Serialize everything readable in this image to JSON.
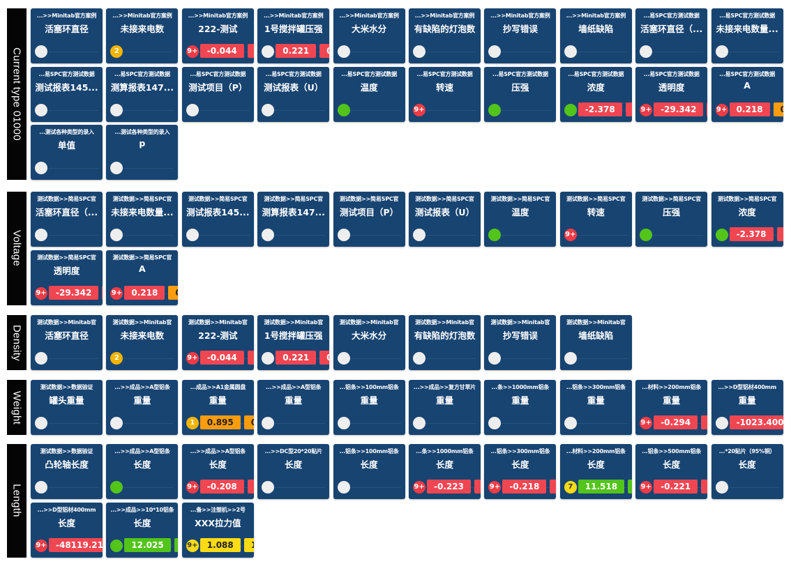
{
  "groups": [
    {
      "label": "Current type 01000",
      "cards": [
        {
          "path": "...>>Minitab官方案例",
          "title": "活塞环直径",
          "indicator": "light",
          "badge": "",
          "values": []
        },
        {
          "path": "...>>Minitab官方案例",
          "title": "未接来电数",
          "indicator": "yellow",
          "badge": "2",
          "values": []
        },
        {
          "path": "...>>Minitab官方案例",
          "title": "222-测试",
          "indicator": "red",
          "badge": "9+",
          "values": [
            {
              "text": "-0.044",
              "color": "red"
            },
            {
              "text": "-0.",
              "color": "red"
            }
          ]
        },
        {
          "path": "...>>Minitab官方案例",
          "title": "1号搅拌罐压强",
          "indicator": "light",
          "badge": "",
          "values": [
            {
              "text": "0.221",
              "color": "red"
            },
            {
              "text": "0",
              "color": "red"
            }
          ]
        },
        {
          "path": "...>>Minitab官方案例",
          "title": "大米水分",
          "indicator": "light",
          "badge": "",
          "values": []
        },
        {
          "path": "...>>Minitab官方案例",
          "title": "有缺陷的灯泡数",
          "indicator": "light",
          "badge": "",
          "values": []
        },
        {
          "path": "...>>Minitab官方案例",
          "title": "抄写错误",
          "indicator": "light",
          "badge": "",
          "values": []
        },
        {
          "path": "...>>Minitab官方案例",
          "title": "墙纸缺陷",
          "indicator": "light",
          "badge": "",
          "values": []
        },
        {
          "path": "...易SPC官方测试数据",
          "title": "活塞环直径（...",
          "indicator": "light",
          "badge": "",
          "values": []
        },
        {
          "path": "...易SPC官方测试数据",
          "title": "未接来电数量...",
          "indicator": "light",
          "badge": "",
          "values": []
        },
        {
          "path": "...易SPC官方测试数据",
          "title": "测试报表145...",
          "indicator": "light",
          "badge": "",
          "values": []
        },
        {
          "path": "...易SPC官方测试数据",
          "title": "测算报表147...",
          "indicator": "light",
          "badge": "",
          "values": []
        },
        {
          "path": "...易SPC官方测试数据",
          "title": "测试项目（P）",
          "indicator": "light",
          "badge": "",
          "values": []
        },
        {
          "path": "...易SPC官方测试数据",
          "title": "测试报表（U）",
          "indicator": "light",
          "badge": "",
          "values": []
        },
        {
          "path": "...易SPC官方测试数据",
          "title": "温度",
          "indicator": "green",
          "badge": "",
          "values": []
        },
        {
          "path": "...易SPC官方测试数据",
          "title": "转速",
          "indicator": "red",
          "badge": "9+",
          "values": []
        },
        {
          "path": "...易SPC官方测试数据",
          "title": "压强",
          "indicator": "green",
          "badge": "",
          "values": []
        },
        {
          "path": "...易SPC官方测试数据",
          "title": "浓度",
          "indicator": "green",
          "badge": "",
          "values": [
            {
              "text": "-2.378",
              "color": "red"
            },
            {
              "text": "-2",
              "color": "red"
            }
          ]
        },
        {
          "path": "...易SPC官方测试数据",
          "title": "透明度",
          "indicator": "red",
          "badge": "9+",
          "values": [
            {
              "text": "-29.342",
              "color": "red"
            },
            {
              "text": "-",
              "color": "red"
            }
          ]
        },
        {
          "path": "...易SPC官方测试数据",
          "title": "A",
          "indicator": "red",
          "badge": "9+",
          "values": [
            {
              "text": "0.218",
              "color": "red"
            },
            {
              "text": "0",
              "color": "orange"
            }
          ]
        },
        {
          "path": "...测试各种类型的录入",
          "title": "单值",
          "indicator": "light",
          "badge": "",
          "values": []
        },
        {
          "path": "...测试各种类型的录入",
          "title": "p",
          "indicator": "light",
          "badge": "",
          "values": []
        }
      ]
    },
    {
      "label": "Voltage",
      "cards": [
        {
          "path": "测试数据>>简易SPC官",
          "title": "活塞环直径（...",
          "indicator": "light",
          "badge": "",
          "values": []
        },
        {
          "path": "测试数据>>简易SPC官",
          "title": "未接来电数量...",
          "indicator": "light",
          "badge": "",
          "values": []
        },
        {
          "path": "测试数据>>简易SPC官",
          "title": "测试报表145...",
          "indicator": "light",
          "badge": "",
          "values": []
        },
        {
          "path": "测试数据>>简易SPC官",
          "title": "测算报表147...",
          "indicator": "light",
          "badge": "",
          "values": []
        },
        {
          "path": "测试数据>>简易SPC官",
          "title": "测试项目（P）",
          "indicator": "light",
          "badge": "",
          "values": []
        },
        {
          "path": "测试数据>>简易SPC官",
          "title": "测试报表（U）",
          "indicator": "light",
          "badge": "",
          "values": []
        },
        {
          "path": "测试数据>>简易SPC官",
          "title": "温度",
          "indicator": "green",
          "badge": "",
          "values": []
        },
        {
          "path": "测试数据>>简易SPC官",
          "title": "转速",
          "indicator": "red",
          "badge": "9+",
          "values": []
        },
        {
          "path": "测试数据>>简易SPC官",
          "title": "压强",
          "indicator": "green",
          "badge": "",
          "values": []
        },
        {
          "path": "测试数据>>简易SPC官",
          "title": "浓度",
          "indicator": "green",
          "badge": "",
          "values": [
            {
              "text": "-2.378",
              "color": "red"
            },
            {
              "text": "-2",
              "color": "red"
            }
          ]
        },
        {
          "path": "测试数据>>简易SPC官",
          "title": "透明度",
          "indicator": "red",
          "badge": "9+",
          "values": [
            {
              "text": "-29.342",
              "color": "red"
            },
            {
              "text": "-",
              "color": "red"
            }
          ]
        },
        {
          "path": "测试数据>>简易SPC官",
          "title": "A",
          "indicator": "red",
          "badge": "9+",
          "values": [
            {
              "text": "0.218",
              "color": "red"
            },
            {
              "text": "0",
              "color": "orange"
            }
          ]
        }
      ]
    },
    {
      "label": "Density",
      "cards": [
        {
          "path": "测试数据>>Minitab官",
          "title": "活塞环直径",
          "indicator": "light",
          "badge": "",
          "values": []
        },
        {
          "path": "测试数据>>Minitab官",
          "title": "未接来电数",
          "indicator": "yellow",
          "badge": "2",
          "values": []
        },
        {
          "path": "测试数据>>Minitab官",
          "title": "222-测试",
          "indicator": "red",
          "badge": "9+",
          "values": [
            {
              "text": "-0.044",
              "color": "red"
            },
            {
              "text": "-0.",
              "color": "red"
            }
          ]
        },
        {
          "path": "测试数据>>Minitab官",
          "title": "1号搅拌罐压强",
          "indicator": "light",
          "badge": "",
          "values": [
            {
              "text": "0.221",
              "color": "red"
            },
            {
              "text": "0",
              "color": "red"
            }
          ]
        },
        {
          "path": "测试数据>>Minitab官",
          "title": "大米水分",
          "indicator": "light",
          "badge": "",
          "values": []
        },
        {
          "path": "测试数据>>Minitab官",
          "title": "有缺陷的灯泡数",
          "indicator": "light",
          "badge": "",
          "values": []
        },
        {
          "path": "测试数据>>Minitab官",
          "title": "抄写错误",
          "indicator": "light",
          "badge": "",
          "values": []
        },
        {
          "path": "测试数据>>Minitab官",
          "title": "墙纸缺陷",
          "indicator": "light",
          "badge": "",
          "values": []
        }
      ]
    },
    {
      "label": "Weight",
      "cards": [
        {
          "path": "测试数据>>数据验证",
          "title": "罐头重量",
          "indicator": "light",
          "badge": "",
          "values": []
        },
        {
          "path": "...>>成品>>A型铝条",
          "title": "重量",
          "indicator": "light",
          "badge": "",
          "values": []
        },
        {
          "path": "...成品>>A1金属圆盘",
          "title": "重量",
          "indicator": "yellow",
          "badge": "1",
          "values": [
            {
              "text": "0.895",
              "color": "orange"
            },
            {
              "text": "0",
              "color": "orange"
            }
          ]
        },
        {
          "path": "...>>成品>>A型铝条",
          "title": "重量",
          "indicator": "light",
          "badge": "",
          "values": []
        },
        {
          "path": "...铝条>>100mm铝条",
          "title": "重量",
          "indicator": "light",
          "badge": "",
          "values": []
        },
        {
          "path": "...>>成品>>复方甘草片",
          "title": "重量",
          "indicator": "light",
          "badge": "",
          "values": []
        },
        {
          "path": "...条>>1000mm铝条",
          "title": "重量",
          "indicator": "light",
          "badge": "",
          "values": []
        },
        {
          "path": "...铝条>>300mm铝条",
          "title": "重量",
          "indicator": "light",
          "badge": "",
          "values": []
        },
        {
          "path": "...材料>>200mm铝条",
          "title": "重量",
          "indicator": "red",
          "badge": "9+",
          "values": [
            {
              "text": "-0.294",
              "color": "red"
            },
            {
              "text": "-",
              "color": "red"
            }
          ]
        },
        {
          "path": "...>>D型铝材400mm",
          "title": "重量",
          "indicator": "light",
          "badge": "",
          "values": [
            {
              "text": "-1023.400",
              "color": "red"
            }
          ]
        }
      ]
    },
    {
      "label": "Length",
      "cards": [
        {
          "path": "测试数据>>数据验证",
          "title": "凸轮轴长度",
          "indicator": "light",
          "badge": "",
          "values": []
        },
        {
          "path": "...>>成品>>A型铝条",
          "title": "长度",
          "indicator": "green",
          "badge": "",
          "values": []
        },
        {
          "path": "...>>成品>>A型铝条",
          "title": "长度",
          "indicator": "red",
          "badge": "9+",
          "values": [
            {
              "text": "-0.208",
              "color": "red"
            },
            {
              "text": "-",
              "color": "red"
            }
          ]
        },
        {
          "path": "...>>DC型20*20贴片",
          "title": "长度",
          "indicator": "light",
          "badge": "",
          "values": []
        },
        {
          "path": "...铝条>>100mm铝条",
          "title": "长度",
          "indicator": "light",
          "badge": "",
          "values": []
        },
        {
          "path": "...条>>1000mm铝条",
          "title": "长度",
          "indicator": "red",
          "badge": "9+",
          "values": [
            {
              "text": "-0.223",
              "color": "red"
            },
            {
              "text": "-",
              "color": "red"
            }
          ]
        },
        {
          "path": "...铝条>>300mm铝条",
          "title": "长度",
          "indicator": "red",
          "badge": "9+",
          "values": [
            {
              "text": "-0.218",
              "color": "red"
            },
            {
              "text": "-",
              "color": "red"
            }
          ]
        },
        {
          "path": "...材料>>200mm铝条",
          "title": "长度",
          "indicator": "ylw",
          "badge": "7",
          "values": [
            {
              "text": "11.518",
              "color": "green"
            },
            {
              "text": "1",
              "color": "green"
            }
          ]
        },
        {
          "path": "...铝条>>500mm铝条",
          "title": "长度",
          "indicator": "red",
          "badge": "9+",
          "values": [
            {
              "text": "-0.221",
              "color": "red"
            },
            {
              "text": "-",
              "color": "red"
            }
          ]
        },
        {
          "path": "...*20贴片（95%铜）",
          "title": "长度",
          "indicator": "light",
          "badge": "",
          "values": []
        },
        {
          "path": "...>>D型铝材400mm",
          "title": "长度",
          "indicator": "red",
          "badge": "9+",
          "values": [
            {
              "text": "-48119.213",
              "color": "red"
            }
          ]
        },
        {
          "path": "...>>成品>>10*10铝条",
          "title": "长度",
          "indicator": "green",
          "badge": "",
          "values": [
            {
              "text": "12.025",
              "color": "green"
            },
            {
              "text": "1",
              "color": "green"
            }
          ]
        },
        {
          "path": "...备>>注塑机>>2号",
          "title": "XXX拉力值",
          "indicator": "ylw",
          "badge": "9+",
          "values": [
            {
              "text": "1.088",
              "color": "yellow"
            },
            {
              "text": "1",
              "color": "yellow"
            }
          ]
        }
      ]
    }
  ]
}
